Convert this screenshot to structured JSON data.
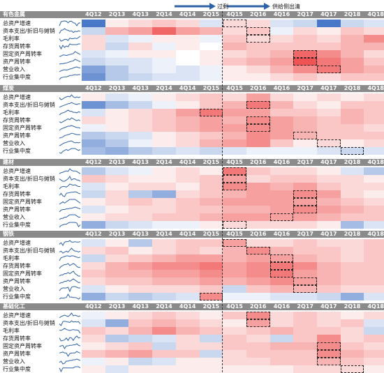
{
  "annotations": {
    "arrow1_label": "过剩",
    "arrow2_label": "供给侧出清"
  },
  "metrics": [
    "总资产增速",
    "资本支出/折旧与摊销",
    "毛利率",
    "存货周转率",
    "固定资产周转率",
    "资产周转率",
    "营业收入",
    "行业集中度"
  ],
  "colors": {
    "header_bg": "#8b8b8b",
    "blue": "#4a78c8",
    "red": "#ee4040",
    "sparkline": "#2e62a8"
  },
  "chart_data": [
    {
      "type": "heatmap",
      "title": "有色金属",
      "categories": [
        "4Q12",
        "2Q13",
        "4Q13",
        "2Q14",
        "4Q14",
        "2Q15",
        "4Q15",
        "2Q16",
        "4Q16",
        "2Q17",
        "4Q17",
        "2Q18",
        "4Q18"
      ],
      "rows": [
        "总资产增速",
        "资本支出/折旧与摊销",
        "毛利率",
        "存货周转率",
        "固定资产周转率",
        "资产周转率",
        "营业收入",
        "行业集中度"
      ],
      "values": [
        [
          -1,
          0.1,
          0.2,
          0.3,
          0.2,
          -0.2,
          0.2,
          0.2,
          -0.2,
          -0.3,
          -1,
          -0.3,
          -0.2
        ],
        [
          -0.3,
          0.4,
          0.5,
          0.8,
          0.5,
          0.4,
          0.2,
          0.3,
          -0.1,
          0.2,
          0.1,
          0.3,
          0.2
        ],
        [
          0.2,
          -0.2,
          -0.1,
          0.1,
          0.1,
          -0.1,
          0.3,
          0.2,
          0.2,
          0.3,
          0.2,
          0.4,
          0.6
        ],
        [
          0.2,
          -0.3,
          0.2,
          -0.1,
          0.1,
          0,
          0.4,
          0.3,
          0.3,
          0.3,
          0.3,
          0.4,
          0.4
        ],
        [
          -0.2,
          -0.1,
          0.1,
          0.1,
          0,
          0.1,
          0.2,
          0.3,
          0.4,
          0.8,
          0.6,
          0.4,
          0.2
        ],
        [
          -0.3,
          -0.2,
          -0.2,
          -0.1,
          0,
          0.1,
          0.3,
          0.4,
          0.5,
          0.9,
          0.7,
          0.5,
          0.3
        ],
        [
          -0.7,
          -0.4,
          -0.2,
          -0.1,
          -0.2,
          -0.1,
          0.1,
          0.2,
          0.4,
          0.6,
          0.7,
          0.5,
          0.4
        ],
        [
          -0.8,
          -0.4,
          -0.3,
          -0.2,
          -0.2,
          -0.1,
          0.1,
          0.1,
          0.2,
          0.3,
          0.2,
          0.3,
          0.3
        ]
      ],
      "boxes": [
        [
          0,
          6
        ],
        [
          1,
          7
        ],
        [
          2,
          7
        ],
        [
          4,
          9
        ],
        [
          5,
          9
        ],
        [
          6,
          10
        ]
      ]
    },
    {
      "type": "heatmap",
      "title": "煤炭",
      "categories": [
        "4Q12",
        "2Q13",
        "4Q13",
        "2Q14",
        "4Q14",
        "2Q15",
        "4Q15",
        "2Q16",
        "4Q16",
        "2Q17",
        "4Q17",
        "2Q18",
        "4Q18"
      ],
      "rows": [
        "总资产增速",
        "资本支出/折旧与摊销",
        "毛利率",
        "存货周转率",
        "固定资产周转率",
        "资产周转率",
        "营业收入",
        "行业集中度"
      ],
      "values": [
        [
          0.1,
          -0.2,
          -0.1,
          0.1,
          0.2,
          0.3,
          0.2,
          0.5,
          0.2,
          0.1,
          0.2,
          0.1,
          0.2
        ],
        [
          -0.8,
          -0.5,
          -0.3,
          -0.1,
          0.1,
          0.3,
          0.4,
          0.7,
          0.4,
          0.2,
          0.1,
          0.3,
          0.3
        ],
        [
          -0.2,
          0.1,
          0.2,
          0.3,
          0.5,
          0.7,
          0.5,
          0.5,
          0.3,
          0.3,
          0.2,
          0.4,
          0.3
        ],
        [
          0.2,
          0.1,
          0.2,
          0.3,
          0.4,
          0.5,
          0.4,
          0.6,
          0.5,
          0.4,
          0.3,
          0.4,
          0.3
        ],
        [
          -0.1,
          0.1,
          0.2,
          0.3,
          0.4,
          0.5,
          0.5,
          0.6,
          0.5,
          0.4,
          0.3,
          0.3,
          0.2
        ],
        [
          -0.4,
          -0.3,
          -0.2,
          0.1,
          0.2,
          0.3,
          0.4,
          0.6,
          0.5,
          0.4,
          0.3,
          0.3,
          0.3
        ],
        [
          -0.6,
          -0.4,
          -0.1,
          0.1,
          0.2,
          0.4,
          0.5,
          0.6,
          0.3,
          0.1,
          0.2,
          0.1,
          0.2
        ],
        [
          -0.5,
          -0.6,
          -0.4,
          -0.3,
          -0.2,
          -0.3,
          -0.2,
          -0.1,
          -0.1,
          -0.1,
          -0.2,
          -0.3,
          -0.2
        ]
      ],
      "boxes": [
        [
          1,
          7
        ],
        [
          2,
          5
        ],
        [
          3,
          7
        ],
        [
          4,
          7
        ],
        [
          5,
          9
        ],
        [
          6,
          10
        ],
        [
          7,
          11
        ]
      ]
    },
    {
      "type": "heatmap",
      "title": "建材",
      "categories": [
        "4Q12",
        "2Q13",
        "4Q13",
        "2Q14",
        "4Q14",
        "2Q15",
        "4Q15",
        "2Q16",
        "4Q16",
        "2Q17",
        "4Q17",
        "2Q18",
        "4Q18"
      ],
      "rows": [
        "总资产增速",
        "资本支出/折旧与摊销",
        "毛利率",
        "存货周转率",
        "固定资产周转率",
        "资产周转率",
        "营业收入",
        "行业集中度"
      ],
      "values": [
        [
          -0.4,
          -0.2,
          -0.1,
          0.1,
          0.2,
          0.1,
          0.7,
          0.3,
          0.2,
          0.2,
          0.1,
          -0.2,
          -0.4
        ],
        [
          0.3,
          0.2,
          0.1,
          0.1,
          0.2,
          0.3,
          0.5,
          0.2,
          0.3,
          0.3,
          0.2,
          0.2,
          0.1
        ],
        [
          -0.2,
          0.1,
          0.2,
          0.2,
          0.1,
          0.3,
          0.6,
          0.5,
          0.4,
          0.5,
          0.3,
          0.2,
          0.2
        ],
        [
          -0.3,
          0.2,
          -0.4,
          -0.6,
          0.2,
          0.3,
          0.4,
          0.5,
          0.5,
          0.6,
          0.5,
          0.2,
          0.1
        ],
        [
          0.1,
          0.2,
          0.3,
          0.2,
          0.3,
          0.4,
          0.5,
          0.5,
          0.5,
          0.5,
          0.4,
          0.3,
          0.2
        ],
        [
          -0.2,
          0.1,
          0.2,
          0.2,
          0.3,
          0.3,
          0.4,
          0.4,
          0.5,
          0.6,
          0.5,
          0.4,
          0.3
        ],
        [
          0.1,
          0.2,
          0.2,
          0.3,
          0.3,
          0.4,
          0.5,
          0.5,
          0.5,
          0.5,
          0.4,
          0.3,
          0.3
        ],
        [
          -0.6,
          -0.3,
          -0.2,
          -0.1,
          -0.1,
          0.1,
          0.2,
          0.2,
          0.2,
          0.2,
          0.1,
          -0.5,
          -0.2
        ]
      ],
      "boxes": [
        [
          0,
          6
        ],
        [
          1,
          6
        ],
        [
          2,
          6
        ],
        [
          3,
          9
        ],
        [
          4,
          9
        ],
        [
          5,
          9
        ],
        [
          6,
          8
        ],
        [
          7,
          6
        ]
      ]
    },
    {
      "type": "heatmap",
      "title": "钢铁",
      "categories": [
        "4Q12",
        "2Q13",
        "4Q13",
        "2Q14",
        "4Q14",
        "2Q15",
        "4Q15",
        "2Q16",
        "4Q16",
        "2Q17",
        "4Q17",
        "2Q18",
        "4Q18"
      ],
      "rows": [
        "总资产增速",
        "资本支出/折旧与摊销",
        "毛利率",
        "存货周转率",
        "固定资产周转率",
        "资产周转率",
        "营业收入",
        "行业集中度"
      ],
      "values": [
        [
          -0.2,
          0.1,
          -0.4,
          0.2,
          0.3,
          0.3,
          0.5,
          0.2,
          0.2,
          0.3,
          0.2,
          0.2,
          0.3
        ],
        [
          0.2,
          0.3,
          0.1,
          0.2,
          0.3,
          0.2,
          0.4,
          0.6,
          0.4,
          0.3,
          0.3,
          0.2,
          0.3
        ],
        [
          -0.3,
          0.2,
          0.3,
          0.4,
          0.5,
          0.5,
          0.4,
          0.5,
          0.5,
          0.4,
          0.3,
          0.2,
          0.3
        ],
        [
          0.2,
          0.4,
          0.5,
          0.6,
          0.6,
          0.7,
          0.5,
          0.6,
          0.7,
          0.6,
          0.4,
          0.3,
          0.3
        ],
        [
          0.3,
          0.4,
          0.4,
          0.5,
          0.5,
          0.6,
          0.5,
          0.6,
          0.7,
          0.5,
          0.4,
          0.3,
          0.3
        ],
        [
          0.2,
          0.3,
          0.3,
          0.4,
          0.4,
          0.5,
          0.4,
          0.5,
          0.6,
          0.5,
          0.4,
          0.3,
          0.3
        ],
        [
          -0.2,
          0.1,
          0.2,
          0.2,
          0.2,
          0.3,
          -0.3,
          0.3,
          0.4,
          0.4,
          0.3,
          0.2,
          0.2
        ],
        [
          -0.6,
          -0.3,
          -0.4,
          -0.3,
          -0.2,
          0.6,
          -0.1,
          -0.1,
          -0.2,
          -0.2,
          -0.3,
          -0.6,
          -0.2
        ]
      ],
      "boxes": [
        [
          0,
          6
        ],
        [
          1,
          7
        ],
        [
          2,
          8
        ],
        [
          3,
          8
        ],
        [
          4,
          8
        ],
        [
          5,
          9
        ],
        [
          6,
          9
        ],
        [
          7,
          5
        ]
      ]
    },
    {
      "type": "heatmap",
      "title": "基础化工",
      "categories": [
        "4Q12",
        "2Q13",
        "4Q13",
        "2Q14",
        "4Q14",
        "2Q15",
        "4Q15",
        "2Q16",
        "4Q16",
        "2Q17",
        "4Q17",
        "2Q18",
        "4Q18"
      ],
      "rows": [
        "总资产增速",
        "资本支出/折旧与摊销",
        "毛利率",
        "存货周转率",
        "固定资产周转率",
        "资产周转率",
        "营业收入",
        "行业集中度"
      ],
      "values": [
        [
          -0.1,
          0.1,
          0.2,
          0.3,
          0.2,
          0.1,
          0.3,
          0.6,
          0.2,
          0.3,
          0.2,
          0.1,
          0.2
        ],
        [
          -0.2,
          -0.6,
          0.3,
          0.4,
          0.3,
          0.2,
          0.1,
          0.5,
          0.2,
          0.3,
          0.2,
          0.3,
          -0.2
        ],
        [
          0.3,
          0.2,
          0.4,
          0.6,
          0.4,
          0.3,
          0.2,
          0.3,
          0.4,
          0.3,
          0.3,
          0.2,
          -0.3
        ],
        [
          0.2,
          -0.4,
          -0.3,
          -0.2,
          0.2,
          -0.3,
          0.3,
          0.2,
          -0.3,
          0.3,
          0.6,
          0.2,
          0.3
        ],
        [
          0.1,
          0.2,
          0.3,
          -0.3,
          0.2,
          0.2,
          0.3,
          0.3,
          0.4,
          0.4,
          0.6,
          0.3,
          0.2
        ],
        [
          0.3,
          0.4,
          0.5,
          0.3,
          0.3,
          -0.3,
          0.2,
          0.3,
          0.3,
          0.3,
          0.6,
          0.4,
          0.3
        ],
        [
          -0.1,
          0.1,
          -0.3,
          -0.2,
          0.1,
          0.1,
          0.2,
          0.2,
          0.3,
          0.3,
          0.4,
          0.3,
          0.2
        ],
        [
          0.1,
          -0.2,
          0.1,
          0.1,
          0.1,
          0.1,
          0.1,
          0.1,
          0.1,
          0.2,
          0.2,
          0.2,
          0.1
        ]
      ],
      "boxes": [
        [
          0,
          7
        ],
        [
          1,
          7
        ],
        [
          4,
          10
        ],
        [
          5,
          10
        ],
        [
          6,
          10
        ],
        [
          7,
          11
        ]
      ]
    }
  ]
}
